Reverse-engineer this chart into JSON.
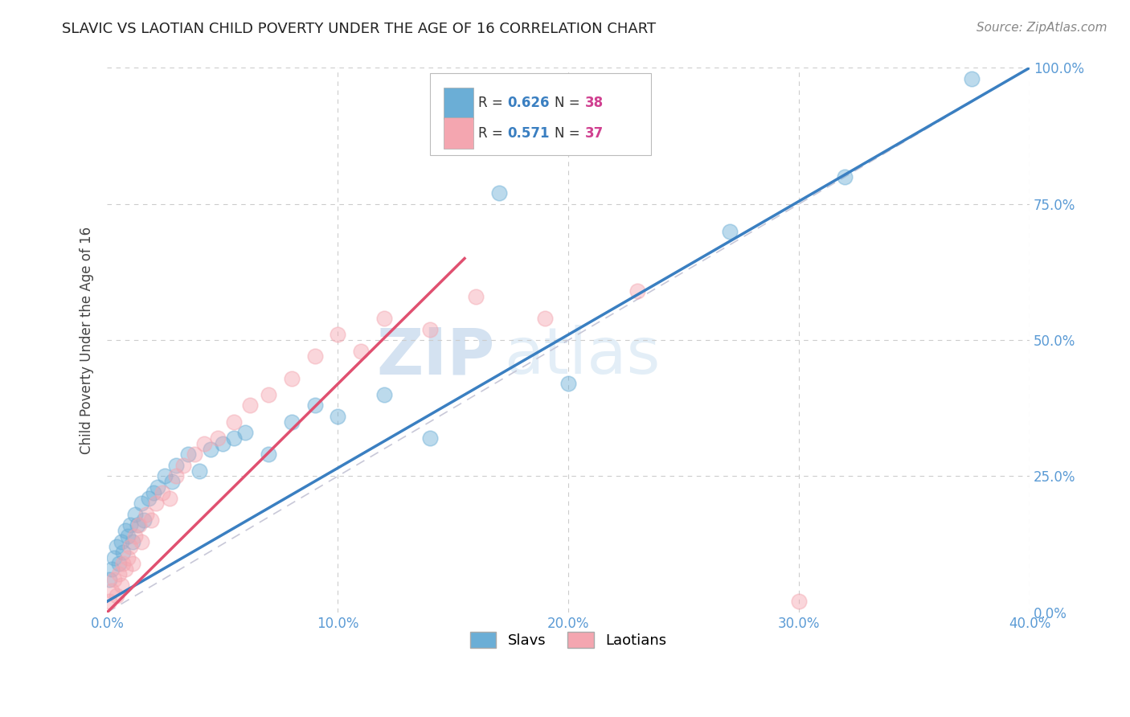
{
  "title": "SLAVIC VS LAOTIAN CHILD POVERTY UNDER THE AGE OF 16 CORRELATION CHART",
  "source": "Source: ZipAtlas.com",
  "ylabel": "Child Poverty Under the Age of 16",
  "xlim": [
    0.0,
    0.4
  ],
  "ylim": [
    0.0,
    1.0
  ],
  "xticks": [
    0.0,
    0.1,
    0.2,
    0.3,
    0.4
  ],
  "yticks": [
    0.0,
    0.25,
    0.5,
    0.75,
    1.0
  ],
  "xticklabels": [
    "0.0%",
    "10.0%",
    "20.0%",
    "30.0%",
    "40.0%"
  ],
  "yticklabels": [
    "0.0%",
    "25.0%",
    "50.0%",
    "75.0%",
    "100.0%"
  ],
  "slavs_color": "#6baed6",
  "laotians_color": "#f4a6b0",
  "slavs_line_color": "#3a7fc1",
  "laotians_line_color": "#e05070",
  "slavs_R": "0.626",
  "slavs_N": "38",
  "laotians_R": "0.571",
  "laotians_N": "37",
  "watermark": "ZIPatlas",
  "background_color": "#ffffff",
  "grid_color": "#cccccc",
  "title_color": "#333333",
  "tick_color": "#5b9bd5",
  "legend_R_color": "#3a7fc1",
  "legend_N_color": "#d04090",
  "ref_line_color": "#c8c8d8"
}
